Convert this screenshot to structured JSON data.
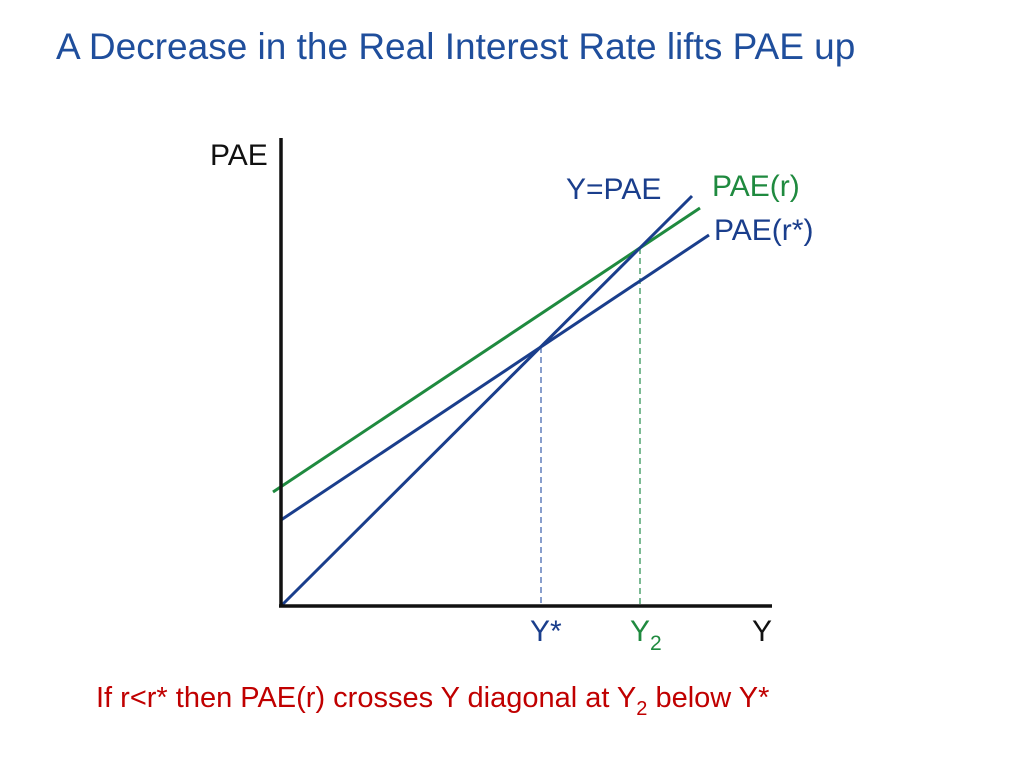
{
  "title": "A Decrease in the Real Interest Rate lifts PAE up",
  "colors": {
    "title": "#1f4e9c",
    "axis": "#111111",
    "pae_r_star": "#1a3e8c",
    "diagonal": "#1a3e8c",
    "pae_r": "#1f8a3f",
    "caption": "#c00000"
  },
  "diagram": {
    "y_axis_label": "PAE",
    "x_axis_label": "Y",
    "lines": {
      "diagonal": "Y=PAE",
      "pae_r": "PAE(r)",
      "pae_r_star": "PAE(r*)"
    },
    "equilibria": {
      "y_star": "Y*",
      "y2_base": "Y",
      "y2_sub": "2"
    }
  },
  "caption": {
    "before": "If r<r* then PAE(r) crosses Y diagonal at Y",
    "sub": "2",
    "after": " below Y*"
  }
}
